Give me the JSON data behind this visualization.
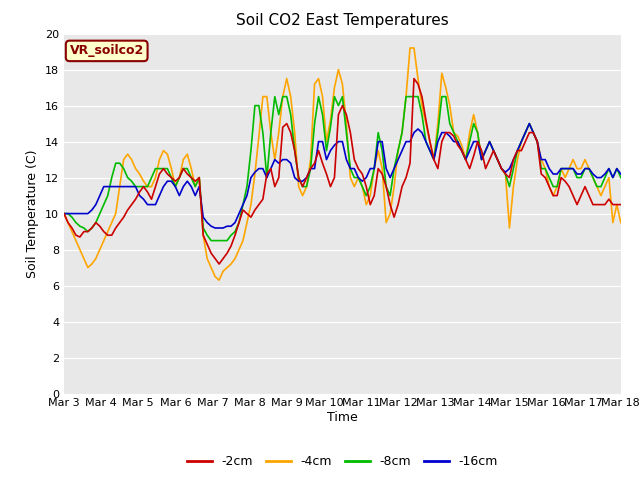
{
  "title": "Soil CO2 East Temperatures",
  "xlabel": "Time",
  "ylabel": "Soil Temperature (C)",
  "ylim": [
    0,
    20
  ],
  "background_color": "#e8e8e8",
  "annotation_text": "VR_soilco2",
  "annotation_bg": "#ffffcc",
  "annotation_border": "#880000",
  "xtick_labels": [
    "Mar 3",
    "Mar 4",
    "Mar 5",
    "Mar 6",
    "Mar 7",
    "Mar 8",
    "Mar 9",
    "Mar 10",
    "Mar 11",
    "Mar 12",
    "Mar 13",
    "Mar 14",
    "Mar 15",
    "Mar 16",
    "Mar 17",
    "Mar 18"
  ],
  "series": {
    "-2cm": {
      "color": "#cc0000",
      "lw": 1.2
    },
    "-4cm": {
      "color": "#ffa500",
      "lw": 1.2
    },
    "-8cm": {
      "color": "#00bb00",
      "lw": 1.2
    },
    "-16cm": {
      "color": "#0000cc",
      "lw": 1.2
    }
  },
  "data_2cm": [
    10.0,
    9.5,
    9.2,
    8.8,
    8.7,
    9.0,
    9.0,
    9.2,
    9.5,
    9.3,
    9.0,
    8.8,
    8.8,
    9.2,
    9.5,
    9.8,
    10.2,
    10.5,
    10.8,
    11.2,
    11.5,
    11.2,
    10.8,
    11.5,
    12.2,
    12.5,
    12.2,
    12.0,
    11.8,
    12.0,
    12.5,
    12.2,
    12.0,
    11.8,
    12.0,
    8.8,
    8.3,
    7.8,
    7.5,
    7.2,
    7.5,
    7.8,
    8.2,
    8.8,
    9.5,
    10.2,
    10.0,
    9.8,
    10.2,
    10.5,
    10.8,
    12.2,
    12.5,
    11.5,
    12.0,
    14.8,
    15.0,
    14.5,
    13.5,
    12.0,
    11.5,
    12.0,
    12.5,
    12.8,
    13.5,
    12.8,
    12.2,
    11.5,
    12.0,
    15.5,
    16.0,
    15.5,
    14.5,
    13.0,
    12.5,
    12.2,
    11.5,
    10.5,
    11.0,
    12.5,
    12.2,
    11.5,
    10.5,
    9.8,
    10.5,
    11.5,
    12.0,
    12.8,
    17.5,
    17.2,
    16.5,
    15.2,
    14.0,
    13.0,
    12.5,
    14.0,
    14.5,
    14.5,
    14.3,
    13.8,
    13.5,
    13.0,
    12.5,
    13.2,
    14.0,
    13.5,
    12.5,
    13.0,
    13.5,
    13.0,
    12.5,
    12.2,
    12.0,
    13.0,
    13.5,
    13.5,
    14.0,
    14.5,
    14.5,
    14.0,
    12.2,
    12.0,
    11.5,
    11.0,
    11.0,
    12.0,
    11.8,
    11.5,
    11.0,
    10.5,
    11.0,
    11.5,
    11.0,
    10.5,
    10.5,
    10.5,
    10.5,
    10.8,
    10.5,
    10.5,
    10.5
  ],
  "data_4cm": [
    10.0,
    9.5,
    9.0,
    8.5,
    8.0,
    7.5,
    7.0,
    7.2,
    7.5,
    8.0,
    8.5,
    9.0,
    9.5,
    10.0,
    11.5,
    13.0,
    13.3,
    13.0,
    12.5,
    12.2,
    11.8,
    11.5,
    11.5,
    12.0,
    13.0,
    13.5,
    13.3,
    12.5,
    11.5,
    12.0,
    13.0,
    13.3,
    12.5,
    11.5,
    12.0,
    8.8,
    7.5,
    7.0,
    6.5,
    6.3,
    6.8,
    7.0,
    7.2,
    7.5,
    8.0,
    8.5,
    9.5,
    10.5,
    12.2,
    14.3,
    16.5,
    16.5,
    14.5,
    13.0,
    14.5,
    16.5,
    17.5,
    16.5,
    14.5,
    11.5,
    11.0,
    11.5,
    13.0,
    17.2,
    17.5,
    16.5,
    14.0,
    15.2,
    17.0,
    18.0,
    17.2,
    15.0,
    12.0,
    11.5,
    12.0,
    11.5,
    10.5,
    11.0,
    12.5,
    13.5,
    12.5,
    9.5,
    10.0,
    11.5,
    13.5,
    14.5,
    16.5,
    19.2,
    19.2,
    17.5,
    16.0,
    15.0,
    14.0,
    13.0,
    15.0,
    17.8,
    17.0,
    16.0,
    14.5,
    14.3,
    13.8,
    13.0,
    14.5,
    15.5,
    14.5,
    13.0,
    13.5,
    14.0,
    13.5,
    13.0,
    12.5,
    12.2,
    9.2,
    11.5,
    13.0,
    14.0,
    14.5,
    15.0,
    14.5,
    14.0,
    13.0,
    12.5,
    11.5,
    11.0,
    11.5,
    12.5,
    12.0,
    12.5,
    13.0,
    12.5,
    12.5,
    13.0,
    12.5,
    12.0,
    11.5,
    11.0,
    11.5,
    12.0,
    9.5,
    10.5,
    9.5
  ],
  "data_8cm": [
    10.0,
    10.0,
    9.8,
    9.5,
    9.3,
    9.2,
    9.0,
    9.2,
    9.5,
    10.0,
    10.5,
    11.0,
    12.0,
    12.8,
    12.8,
    12.5,
    12.0,
    11.8,
    11.5,
    11.5,
    11.5,
    11.5,
    12.0,
    12.5,
    12.5,
    12.5,
    12.5,
    12.0,
    11.5,
    12.0,
    12.5,
    12.5,
    12.0,
    11.5,
    12.0,
    9.2,
    8.8,
    8.5,
    8.5,
    8.5,
    8.5,
    8.5,
    8.8,
    9.0,
    9.5,
    10.5,
    11.5,
    13.5,
    16.0,
    16.0,
    14.5,
    12.0,
    14.5,
    16.5,
    15.5,
    16.5,
    16.5,
    15.5,
    13.5,
    12.0,
    11.5,
    11.5,
    12.5,
    15.0,
    16.5,
    15.5,
    13.5,
    14.8,
    16.5,
    16.0,
    16.5,
    14.5,
    12.5,
    12.0,
    12.0,
    11.5,
    11.0,
    11.5,
    12.5,
    14.5,
    13.5,
    11.5,
    11.0,
    12.5,
    13.5,
    14.5,
    16.5,
    16.5,
    16.5,
    16.5,
    15.5,
    14.0,
    13.5,
    13.0,
    14.5,
    16.5,
    16.5,
    15.0,
    14.5,
    14.0,
    13.5,
    13.0,
    14.0,
    15.0,
    14.5,
    13.0,
    13.5,
    14.0,
    13.5,
    13.0,
    12.5,
    12.2,
    11.5,
    12.5,
    13.5,
    14.0,
    14.5,
    15.0,
    14.5,
    14.0,
    12.5,
    12.5,
    12.0,
    11.5,
    11.5,
    12.5,
    12.5,
    12.5,
    12.5,
    12.0,
    12.0,
    12.5,
    12.5,
    12.0,
    11.5,
    11.5,
    12.0,
    12.5,
    12.0,
    12.5,
    12.0
  ],
  "data_16cm": [
    10.0,
    10.0,
    10.0,
    10.0,
    10.0,
    10.0,
    10.0,
    10.2,
    10.5,
    11.0,
    11.5,
    11.5,
    11.5,
    11.5,
    11.5,
    11.5,
    11.5,
    11.5,
    11.5,
    11.0,
    10.8,
    10.5,
    10.5,
    10.5,
    11.0,
    11.5,
    11.8,
    11.8,
    11.5,
    11.0,
    11.5,
    11.8,
    11.5,
    11.0,
    11.5,
    9.8,
    9.5,
    9.3,
    9.2,
    9.2,
    9.2,
    9.3,
    9.3,
    9.5,
    10.0,
    10.5,
    11.0,
    12.0,
    12.3,
    12.5,
    12.5,
    12.0,
    12.5,
    13.0,
    12.8,
    13.0,
    13.0,
    12.8,
    12.0,
    11.8,
    11.8,
    12.0,
    12.5,
    12.5,
    14.0,
    14.0,
    13.0,
    13.5,
    13.8,
    14.0,
    14.0,
    13.0,
    12.5,
    12.5,
    12.0,
    11.8,
    12.0,
    12.5,
    12.5,
    14.0,
    14.0,
    12.5,
    12.0,
    12.5,
    13.0,
    13.5,
    14.0,
    14.0,
    14.5,
    14.7,
    14.5,
    14.0,
    13.5,
    13.0,
    14.0,
    14.5,
    14.5,
    14.3,
    14.0,
    14.0,
    13.5,
    13.0,
    13.5,
    14.0,
    14.0,
    13.0,
    13.5,
    14.0,
    13.5,
    13.0,
    12.5,
    12.3,
    12.5,
    13.0,
    13.5,
    14.0,
    14.5,
    15.0,
    14.5,
    14.0,
    13.0,
    13.0,
    12.5,
    12.2,
    12.2,
    12.5,
    12.5,
    12.5,
    12.5,
    12.2,
    12.2,
    12.5,
    12.5,
    12.2,
    12.0,
    12.0,
    12.2,
    12.5,
    12.0,
    12.5,
    12.2
  ]
}
